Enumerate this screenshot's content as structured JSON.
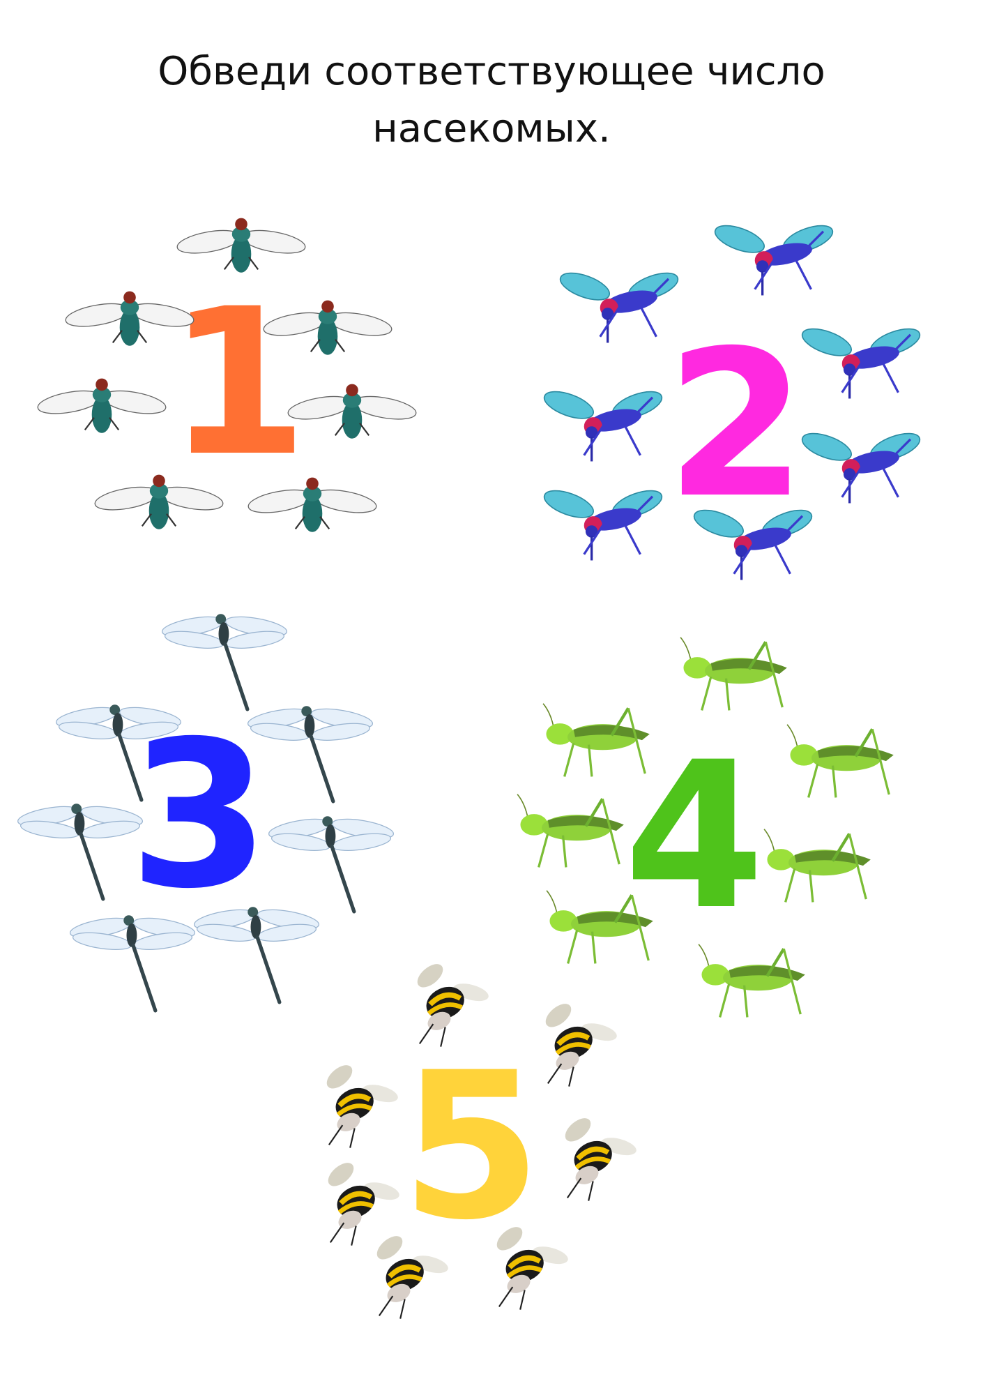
{
  "instruction": {
    "line1": "Обведи соответствующее число",
    "line2": "насекомых."
  },
  "groups": [
    {
      "digit": "1",
      "color": "#ff7033",
      "insect": "fly-icon",
      "count": 7
    },
    {
      "digit": "2",
      "color": "#ff29e0",
      "insect": "cricket-icon",
      "count": 7
    },
    {
      "digit": "3",
      "color": "#1f24ff",
      "insect": "dragonfly-icon",
      "count": 7
    },
    {
      "digit": "4",
      "color": "#4fc31b",
      "insect": "grasshopper-icon",
      "count": 7
    },
    {
      "digit": "5",
      "color": "#ffd33a",
      "insect": "bee-icon",
      "count": 7
    }
  ]
}
